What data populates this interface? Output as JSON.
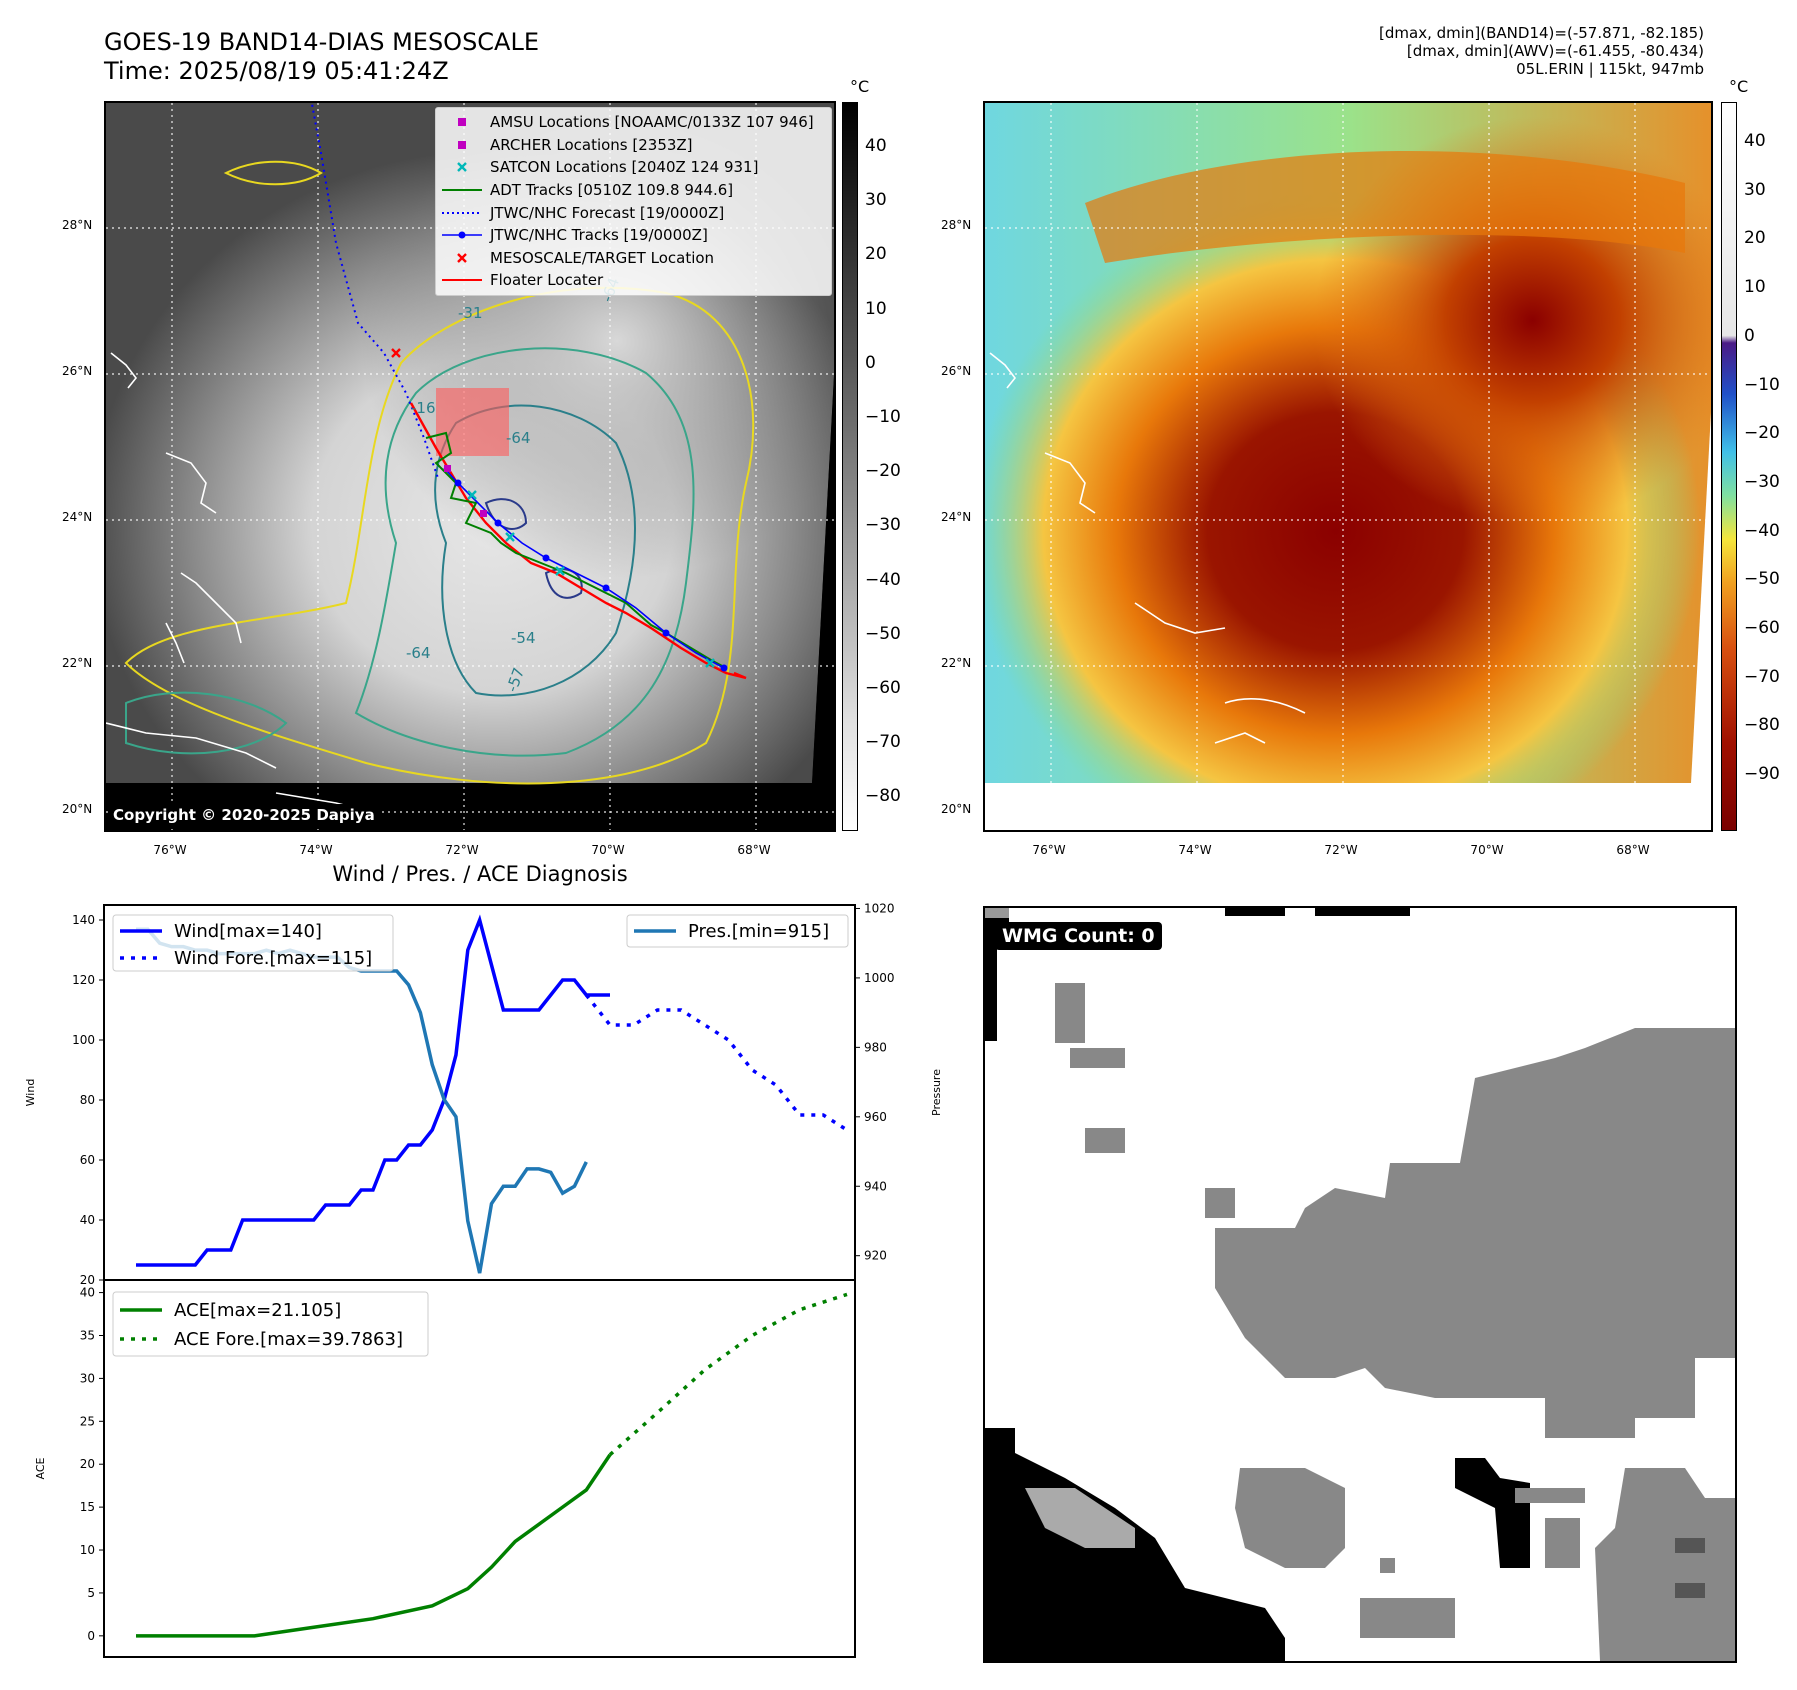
{
  "header": {
    "title_line1": "GOES-19 BAND14-DIAS MESOSCALE",
    "title_line2": "Time: 2025/08/19 05:41:24Z",
    "info_line1": "[dmax, dmin](BAND14)=(-57.871, -82.185)",
    "info_line2": "[dmax, dmin](AWV)=(-61.455, -80.434)",
    "info_line3": "05L.ERIN | 115kt, 947mb"
  },
  "map": {
    "lat_ticks": [
      "28°N",
      "26°N",
      "24°N",
      "22°N",
      "20°N"
    ],
    "lon_ticks": [
      "76°W",
      "74°W",
      "72°W",
      "70°W",
      "68°W"
    ],
    "copyright": "Copyright © 2020-2025 Dapiya",
    "contour_labels": [
      "-31",
      "-64",
      "-16",
      "-64",
      "-54",
      "-64",
      "-57"
    ],
    "colorbar_gray": {
      "unit": "°C",
      "ticks": [
        "40",
        "30",
        "20",
        "10",
        "0",
        "−10",
        "−20",
        "−30",
        "−40",
        "−50",
        "−60",
        "−70",
        "−80"
      ]
    },
    "colorbar_color": {
      "unit": "°C",
      "ticks": [
        "40",
        "30",
        "20",
        "10",
        "0",
        "−10",
        "−20",
        "−30",
        "−40",
        "−50",
        "−60",
        "−70",
        "−80",
        "−90"
      ]
    },
    "legend": [
      {
        "label": "AMSU Locations [NOAAMC/0133Z 107 946]",
        "kind": "square",
        "color": "#c000c0"
      },
      {
        "label": "ARCHER Locations [2353Z]",
        "kind": "square",
        "color": "#c000c0"
      },
      {
        "label": "SATCON Locations [2040Z 124 931]",
        "kind": "x",
        "color": "#00b8b8"
      },
      {
        "label": "ADT Tracks [0510Z 109.8 944.6]",
        "kind": "line",
        "color": "#008000"
      },
      {
        "label": "JTWC/NHC Forecast [19/0000Z]",
        "kind": "dotted",
        "color": "#0000ff"
      },
      {
        "label": "JTWC/NHC Tracks [19/0000Z]",
        "kind": "line-dot",
        "color": "#0000ff"
      },
      {
        "label": "MESOSCALE/TARGET Location",
        "kind": "x",
        "color": "#ff0000"
      },
      {
        "label": "Floater Locater",
        "kind": "line",
        "color": "#ff0000"
      }
    ]
  },
  "chart_data": [
    {
      "type": "line",
      "title": "Wind / Pres. / ACE Diagnosis",
      "ylabel": "Wind",
      "y2label": "Pressure",
      "ylim": [
        20,
        145
      ],
      "y2lim": [
        913,
        1021
      ],
      "xlim": [
        0,
        60
      ],
      "yticks": [
        20,
        40,
        60,
        80,
        100,
        120,
        140
      ],
      "y2ticks": [
        920,
        940,
        960,
        980,
        1000,
        1020
      ],
      "legend_left": [
        "Wind[max=140]",
        "Wind Fore.[max=115]"
      ],
      "legend_right": [
        "Pres.[min=915]"
      ],
      "series": [
        {
          "name": "Wind[max=140]",
          "color": "#0000ff",
          "style": "solid",
          "x": [
            0,
            1,
            2,
            3,
            4,
            5,
            6,
            7,
            8,
            9,
            10,
            11,
            12,
            13,
            14,
            15,
            16,
            17,
            18,
            19,
            20,
            21,
            22,
            23,
            24,
            25,
            26,
            27,
            28,
            29,
            30,
            31,
            32,
            33,
            34,
            35,
            36,
            37,
            38,
            39,
            40
          ],
          "y": [
            25,
            25,
            25,
            25,
            25,
            25,
            30,
            30,
            30,
            40,
            40,
            40,
            40,
            40,
            40,
            40,
            45,
            45,
            45,
            50,
            50,
            60,
            60,
            65,
            65,
            70,
            80,
            95,
            130,
            140,
            125,
            110,
            110,
            110,
            110,
            115,
            120,
            120,
            115,
            115,
            115
          ]
        },
        {
          "name": "Wind Fore.[max=115]",
          "color": "#0000ff",
          "style": "dotted",
          "x": [
            38,
            40,
            42,
            44,
            46,
            48,
            50,
            52,
            54,
            56,
            58,
            60
          ],
          "y": [
            115,
            105,
            105,
            110,
            110,
            105,
            100,
            90,
            85,
            75,
            75,
            70
          ]
        },
        {
          "name": "Pres.[min=915]",
          "color": "#1f77b4",
          "style": "solid",
          "axis": "y2",
          "x": [
            0,
            1,
            2,
            3,
            4,
            5,
            6,
            7,
            8,
            9,
            10,
            11,
            12,
            13,
            14,
            15,
            16,
            17,
            18,
            19,
            20,
            21,
            22,
            23,
            24,
            25,
            26,
            27,
            28,
            29,
            30,
            31,
            32,
            33,
            34,
            35,
            36,
            37,
            38
          ],
          "y": [
            1014,
            1014,
            1010,
            1009,
            1009,
            1008,
            1008,
            1007,
            1007,
            1007,
            1007,
            1008,
            1007,
            1008,
            1007,
            1006,
            1006,
            1006,
            1003,
            1002,
            1002,
            1002,
            1002,
            998,
            990,
            975,
            965,
            960,
            930,
            915,
            935,
            940,
            940,
            945,
            945,
            944,
            938,
            940,
            947
          ]
        }
      ]
    },
    {
      "type": "line",
      "ylabel": "ACE",
      "ylim": [
        -2,
        41
      ],
      "xlim": [
        0,
        60
      ],
      "yticks": [
        0,
        5,
        10,
        15,
        20,
        25,
        30,
        35,
        40
      ],
      "legend": [
        "ACE[max=21.105]",
        "ACE Fore.[max=39.7863]"
      ],
      "series": [
        {
          "name": "ACE[max=21.105]",
          "color": "#008000",
          "style": "solid",
          "x": [
            0,
            5,
            10,
            15,
            20,
            25,
            28,
            30,
            32,
            34,
            36,
            38,
            40
          ],
          "y": [
            0,
            0,
            0,
            1,
            2,
            3.5,
            5.5,
            8,
            11,
            13,
            15,
            17,
            21.105
          ]
        },
        {
          "name": "ACE Fore.[max=39.7863]",
          "color": "#008000",
          "style": "dotted",
          "x": [
            40,
            44,
            48,
            52,
            56,
            60
          ],
          "y": [
            21.105,
            26,
            31,
            35,
            38,
            39.7863
          ]
        }
      ]
    }
  ],
  "wmg": {
    "label": "WMG Count: 0"
  }
}
